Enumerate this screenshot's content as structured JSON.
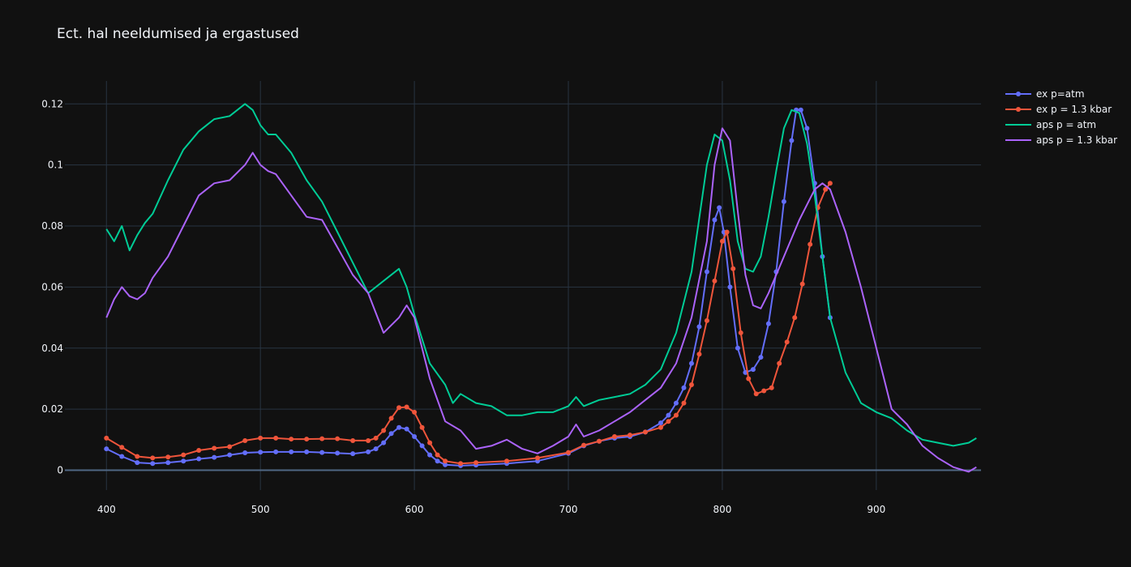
{
  "chart_data": {
    "type": "line",
    "title": "Ect. hal neeldumised ja ergastused",
    "xlabel": "",
    "ylabel": "",
    "xlim": [
      373,
      968
    ],
    "ylim": [
      -0.0065,
      0.1275
    ],
    "x_ticks": [
      400,
      500,
      600,
      700,
      800,
      900
    ],
    "y_ticks": [
      0,
      0.02,
      0.04,
      0.06,
      0.08,
      0.1,
      0.12
    ],
    "y_tick_labels": [
      "0",
      "0.02",
      "0.04",
      "0.06",
      "0.08",
      "0.1",
      "0.12"
    ],
    "grid": true,
    "legend_position": "top-right",
    "series": [
      {
        "name": "ex p=atm",
        "mode": "lines+markers",
        "color": "#636efa",
        "x": [
          400,
          410,
          420,
          430,
          440,
          450,
          460,
          470,
          480,
          490,
          500,
          510,
          520,
          530,
          540,
          550,
          560,
          570,
          575,
          580,
          585,
          590,
          595,
          600,
          605,
          610,
          615,
          620,
          630,
          640,
          660,
          680,
          700,
          710,
          720,
          730,
          740,
          750,
          760,
          765,
          770,
          775,
          780,
          785,
          790,
          795,
          798,
          801,
          805,
          810,
          815,
          820,
          825,
          830,
          835,
          840,
          845,
          848,
          851,
          855,
          860,
          865,
          870
        ],
        "y": [
          0.007,
          0.0045,
          0.0025,
          0.0022,
          0.0025,
          0.003,
          0.0037,
          0.0042,
          0.005,
          0.0057,
          0.0059,
          0.006,
          0.006,
          0.006,
          0.0058,
          0.0056,
          0.0054,
          0.006,
          0.007,
          0.009,
          0.012,
          0.014,
          0.0135,
          0.011,
          0.008,
          0.005,
          0.003,
          0.0018,
          0.0015,
          0.0017,
          0.0022,
          0.003,
          0.0055,
          0.008,
          0.0095,
          0.0105,
          0.011,
          0.0125,
          0.0155,
          0.018,
          0.022,
          0.027,
          0.035,
          0.047,
          0.065,
          0.082,
          0.086,
          0.078,
          0.06,
          0.04,
          0.032,
          0.033,
          0.037,
          0.048,
          0.065,
          0.088,
          0.108,
          0.118,
          0.118,
          0.112,
          0.094,
          0.07,
          0.05
        ]
      },
      {
        "name": "ex p = 1.3 kbar",
        "mode": "lines+markers",
        "color": "#ef553b",
        "x": [
          400,
          410,
          420,
          430,
          440,
          450,
          460,
          470,
          480,
          490,
          500,
          510,
          520,
          530,
          540,
          550,
          560,
          570,
          575,
          580,
          585,
          590,
          595,
          600,
          605,
          610,
          615,
          620,
          630,
          640,
          660,
          680,
          700,
          710,
          720,
          730,
          740,
          750,
          760,
          765,
          770,
          775,
          780,
          785,
          790,
          795,
          800,
          803,
          807,
          812,
          817,
          822,
          827,
          832,
          837,
          842,
          847,
          852,
          857,
          862,
          867,
          870
        ],
        "y": [
          0.0105,
          0.0075,
          0.0045,
          0.004,
          0.0043,
          0.005,
          0.0065,
          0.0072,
          0.0077,
          0.0097,
          0.0105,
          0.0105,
          0.0102,
          0.0102,
          0.0103,
          0.0103,
          0.0097,
          0.0097,
          0.0105,
          0.013,
          0.017,
          0.0205,
          0.0207,
          0.019,
          0.014,
          0.009,
          0.005,
          0.003,
          0.0022,
          0.0025,
          0.003,
          0.004,
          0.0058,
          0.0082,
          0.0095,
          0.011,
          0.0115,
          0.0125,
          0.014,
          0.016,
          0.018,
          0.022,
          0.028,
          0.038,
          0.049,
          0.062,
          0.075,
          0.078,
          0.066,
          0.045,
          0.03,
          0.025,
          0.026,
          0.027,
          0.035,
          0.042,
          0.05,
          0.061,
          0.074,
          0.086,
          0.092,
          0.094
        ]
      },
      {
        "name": "aps p = atm",
        "mode": "lines",
        "color": "#00cc96",
        "x": [
          400,
          405,
          410,
          415,
          420,
          425,
          430,
          440,
          450,
          460,
          470,
          480,
          490,
          495,
          500,
          505,
          510,
          520,
          530,
          540,
          550,
          560,
          570,
          580,
          590,
          595,
          600,
          610,
          620,
          625,
          630,
          640,
          650,
          660,
          670,
          680,
          690,
          700,
          705,
          710,
          720,
          730,
          740,
          750,
          760,
          770,
          780,
          790,
          795,
          800,
          805,
          810,
          815,
          820,
          825,
          830,
          835,
          840,
          845,
          850,
          855,
          860,
          865,
          870,
          880,
          890,
          900,
          910,
          920,
          930,
          940,
          950,
          960,
          965
        ],
        "y": [
          0.079,
          0.075,
          0.08,
          0.072,
          0.077,
          0.081,
          0.084,
          0.095,
          0.105,
          0.111,
          0.115,
          0.116,
          0.12,
          0.118,
          0.113,
          0.11,
          0.11,
          0.104,
          0.095,
          0.088,
          0.078,
          0.068,
          0.058,
          0.062,
          0.066,
          0.06,
          0.051,
          0.035,
          0.028,
          0.022,
          0.025,
          0.022,
          0.021,
          0.018,
          0.018,
          0.019,
          0.019,
          0.021,
          0.024,
          0.021,
          0.023,
          0.024,
          0.025,
          0.028,
          0.033,
          0.045,
          0.065,
          0.1,
          0.11,
          0.108,
          0.095,
          0.075,
          0.066,
          0.065,
          0.07,
          0.083,
          0.098,
          0.112,
          0.118,
          0.117,
          0.107,
          0.09,
          0.07,
          0.05,
          0.032,
          0.022,
          0.019,
          0.017,
          0.013,
          0.01,
          0.009,
          0.008,
          0.009,
          0.0105
        ]
      },
      {
        "name": "aps p = 1.3 kbar",
        "mode": "lines",
        "color": "#ab63fa",
        "x": [
          400,
          405,
          410,
          415,
          420,
          425,
          430,
          440,
          450,
          460,
          470,
          480,
          490,
          495,
          500,
          505,
          510,
          520,
          530,
          540,
          550,
          560,
          570,
          580,
          590,
          595,
          600,
          610,
          620,
          630,
          640,
          650,
          660,
          670,
          680,
          690,
          700,
          705,
          710,
          720,
          730,
          740,
          750,
          760,
          770,
          780,
          790,
          795,
          800,
          805,
          810,
          815,
          820,
          825,
          830,
          840,
          850,
          860,
          865,
          870,
          880,
          890,
          900,
          910,
          920,
          930,
          940,
          950,
          960,
          965
        ],
        "y": [
          0.05,
          0.056,
          0.06,
          0.057,
          0.056,
          0.058,
          0.063,
          0.07,
          0.08,
          0.09,
          0.094,
          0.095,
          0.1,
          0.104,
          0.1,
          0.098,
          0.097,
          0.09,
          0.083,
          0.082,
          0.073,
          0.064,
          0.058,
          0.045,
          0.05,
          0.054,
          0.05,
          0.03,
          0.016,
          0.013,
          0.007,
          0.008,
          0.01,
          0.007,
          0.0055,
          0.008,
          0.011,
          0.015,
          0.011,
          0.013,
          0.016,
          0.019,
          0.023,
          0.027,
          0.035,
          0.05,
          0.075,
          0.1,
          0.112,
          0.108,
          0.085,
          0.064,
          0.054,
          0.053,
          0.058,
          0.07,
          0.082,
          0.092,
          0.094,
          0.092,
          0.078,
          0.06,
          0.04,
          0.02,
          0.015,
          0.008,
          0.004,
          0.001,
          -0.0005,
          0.001
        ]
      }
    ]
  }
}
